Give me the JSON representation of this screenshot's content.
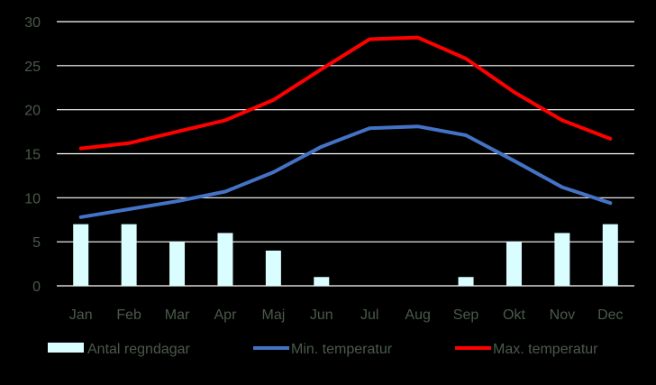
{
  "chart_data": {
    "type": "bar",
    "categories": [
      "Jan",
      "Feb",
      "Mar",
      "Apr",
      "Maj",
      "Jun",
      "Jul",
      "Aug",
      "Sep",
      "Okt",
      "Nov",
      "Dec"
    ],
    "ylim": [
      0,
      30
    ],
    "yticks": [
      0,
      5,
      10,
      15,
      20,
      25,
      30
    ],
    "grid": true,
    "legend_position": "bottom",
    "series": [
      {
        "name": "Antal regndagar",
        "kind": "bar",
        "color": "#dafdff",
        "values": [
          7,
          7,
          5,
          6,
          4,
          1,
          0,
          0,
          1,
          5,
          6,
          7
        ]
      },
      {
        "name": "Min. temperatur",
        "kind": "line",
        "color": "#4472c4",
        "values": [
          7.8,
          8.7,
          9.6,
          10.7,
          12.9,
          15.8,
          17.9,
          18.1,
          17.1,
          14.2,
          11.2,
          9.4
        ]
      },
      {
        "name": "Max. temperatur",
        "kind": "line",
        "color": "#ff0000",
        "values": [
          15.6,
          16.2,
          17.5,
          18.8,
          21.1,
          24.6,
          28.0,
          28.2,
          25.8,
          22.0,
          18.8,
          16.7
        ]
      }
    ]
  }
}
